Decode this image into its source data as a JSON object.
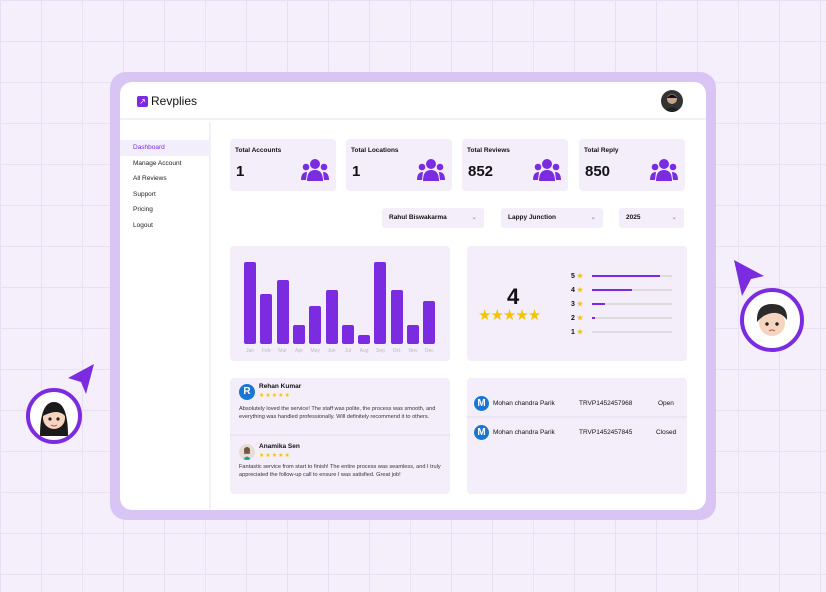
{
  "app": {
    "name": "Revplies"
  },
  "sidebar": {
    "items": [
      {
        "label": "Dashboard",
        "active": true
      },
      {
        "label": "Manage Account"
      },
      {
        "label": "All Reviews"
      },
      {
        "label": "Support"
      },
      {
        "label": "Pricing"
      },
      {
        "label": "Logout"
      }
    ]
  },
  "stats": [
    {
      "title": "Total Accounts",
      "value": "1",
      "icon": "users-icon"
    },
    {
      "title": "Total Locations",
      "value": "1",
      "icon": "users-icon"
    },
    {
      "title": "Total Reviews",
      "value": "852",
      "icon": "users-icon"
    },
    {
      "title": "Total Reply",
      "value": "850",
      "icon": "users-icon"
    }
  ],
  "filters": {
    "user": "Rahul Biswakarma",
    "location": "Lappy Junction",
    "year": "2025"
  },
  "chart_data": {
    "type": "bar",
    "categories": [
      "Jan",
      "Feb",
      "Mar",
      "Apr",
      "May",
      "Jun",
      "Jul",
      "Aug",
      "Sep",
      "Oct",
      "Nov",
      "Dec"
    ],
    "values": [
      82,
      50,
      64,
      19,
      38,
      54,
      19,
      9,
      82,
      54,
      19,
      43
    ],
    "color": "#7b2be0"
  },
  "rating": {
    "average": "4",
    "stars": "★★★★★",
    "distribution": [
      {
        "star": "5",
        "fraction": 0.85
      },
      {
        "star": "4",
        "fraction": 0.5
      },
      {
        "star": "3",
        "fraction": 0.16
      },
      {
        "star": "2",
        "fraction": 0.04
      },
      {
        "star": "1",
        "fraction": 0
      }
    ]
  },
  "reviews": [
    {
      "name": "Rehan Kumar",
      "initial": "R",
      "stars": "★★★★★",
      "text": "Absolutely loved the service! The staff was polite, the process was smooth, and everything was handled professionally. Will definitely recommend it to others."
    },
    {
      "name": "Anamika Sen",
      "initial": "",
      "stars": "★★★★★",
      "text": "Fantastic service from start to finish! The entire process was seamless, and I truly appreciated the follow-up call to ensure I was satisfied. Great job!"
    }
  ],
  "tickets": [
    {
      "initial": "M",
      "name": "Mohan chandra Parik",
      "id": "TRVP1452457968",
      "status": "Open"
    },
    {
      "initial": "M",
      "name": "Mohan chandra Parik",
      "id": "TRVP1452457845",
      "status": "Closed"
    }
  ],
  "colors": {
    "accent": "#7b2be0",
    "panel": "#f4eefb",
    "star": "#f5c400"
  }
}
